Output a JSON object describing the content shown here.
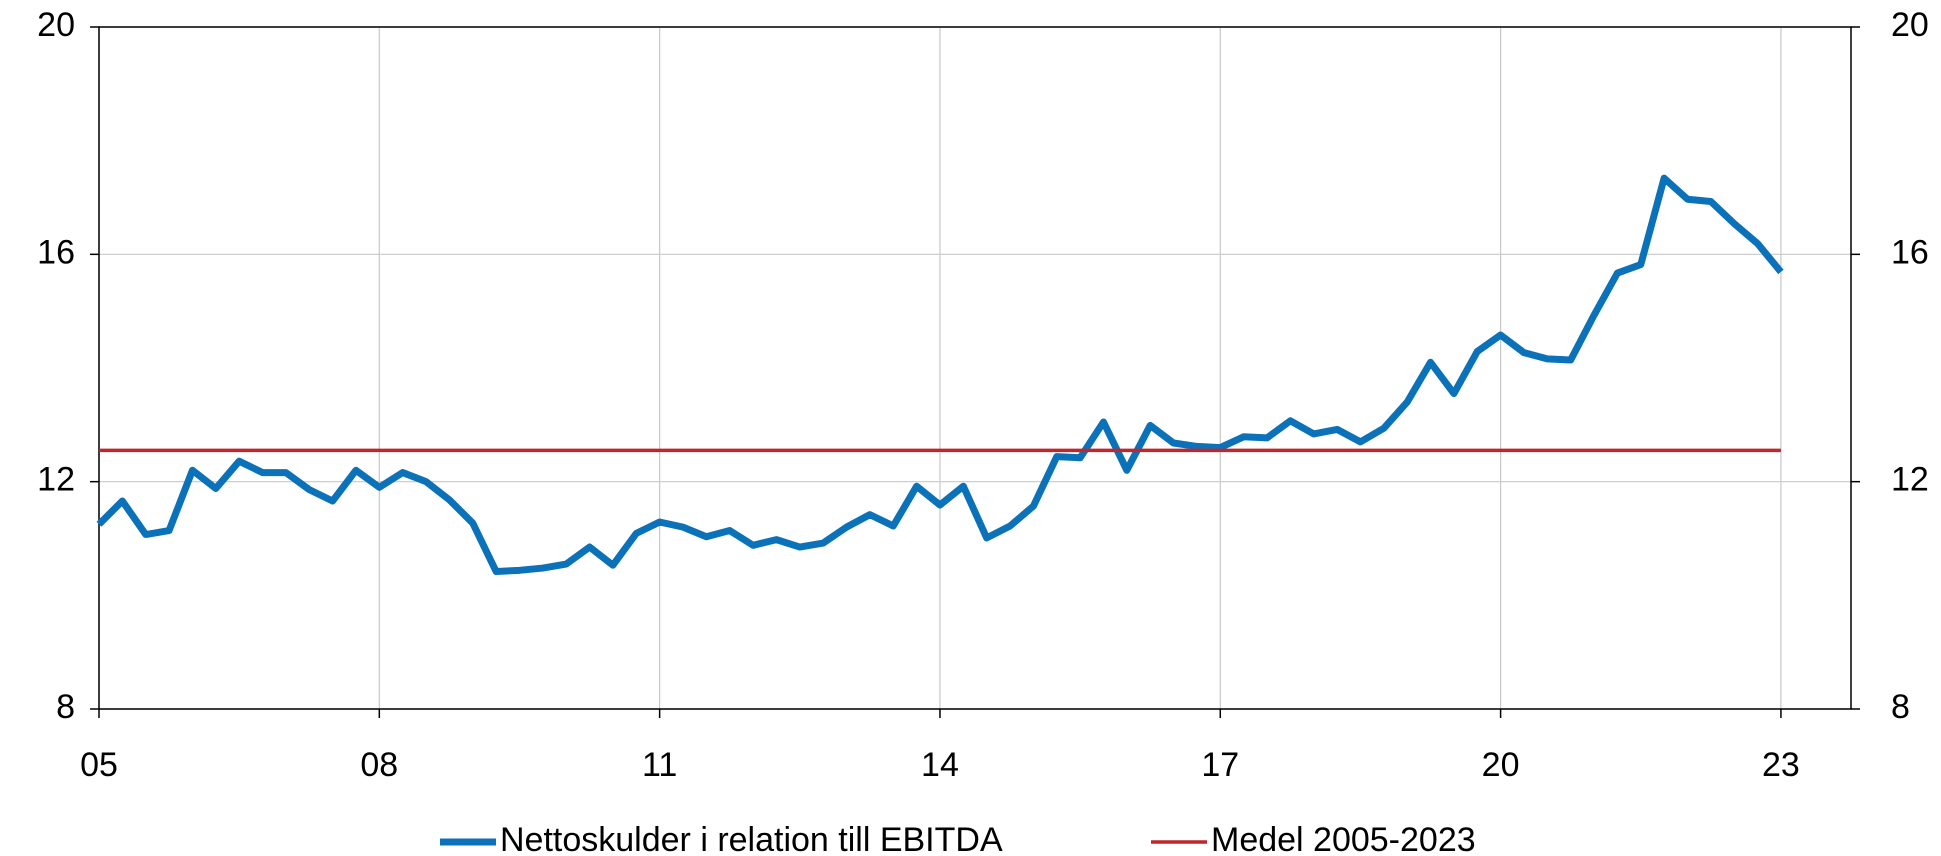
{
  "chart_data": {
    "type": "line",
    "xlim": [
      2005,
      2023.75
    ],
    "xticks": [
      {
        "value": 2005,
        "label": "05"
      },
      {
        "value": 2008,
        "label": "08"
      },
      {
        "value": 2011,
        "label": "11"
      },
      {
        "value": 2014,
        "label": "14"
      },
      {
        "value": 2017,
        "label": "17"
      },
      {
        "value": 2020,
        "label": "20"
      },
      {
        "value": 2023,
        "label": "23"
      }
    ],
    "ylim": [
      8,
      20
    ],
    "yticks": [
      8,
      12,
      16,
      20
    ],
    "y2lim": [
      8,
      20
    ],
    "y2ticks": [
      8,
      12,
      16,
      20
    ],
    "grid": true,
    "legend": "bottom",
    "series": [
      {
        "name": "Nettoskulder i relation till EBITDA",
        "color": "#0b72b9",
        "x": [
          2005,
          2005.25,
          2005.5,
          2005.75,
          2006,
          2006.25,
          2006.5,
          2006.75,
          2007,
          2007.25,
          2007.5,
          2007.75,
          2008,
          2008.25,
          2008.5,
          2008.75,
          2009,
          2009.25,
          2009.5,
          2009.75,
          2010,
          2010.25,
          2010.5,
          2010.75,
          2011,
          2011.25,
          2011.5,
          2011.75,
          2012,
          2012.25,
          2012.5,
          2012.75,
          2013,
          2013.25,
          2013.5,
          2013.75,
          2014,
          2014.25,
          2014.5,
          2014.75,
          2015,
          2015.25,
          2015.5,
          2015.75,
          2016,
          2016.25,
          2016.5,
          2016.75,
          2017,
          2017.25,
          2017.5,
          2017.75,
          2018,
          2018.25,
          2018.5,
          2018.75,
          2019,
          2019.25,
          2019.5,
          2019.75,
          2020,
          2020.25,
          2020.5,
          2020.75,
          2021,
          2021.25,
          2021.5,
          2021.75,
          2022,
          2022.25,
          2022.5,
          2022.75,
          2023
        ],
        "values": [
          11.25,
          11.66,
          11.07,
          11.14,
          12.2,
          11.88,
          12.36,
          12.16,
          12.16,
          11.86,
          11.66,
          12.2,
          11.9,
          12.16,
          12.0,
          11.68,
          11.27,
          10.42,
          10.44,
          10.48,
          10.55,
          10.85,
          10.53,
          11.09,
          11.29,
          11.2,
          11.03,
          11.14,
          10.88,
          10.98,
          10.85,
          10.92,
          11.2,
          11.42,
          11.22,
          11.92,
          11.59,
          11.92,
          11.01,
          11.22,
          11.57,
          12.44,
          12.42,
          13.05,
          12.2,
          12.99,
          12.68,
          12.62,
          12.6,
          12.79,
          12.77,
          13.07,
          12.84,
          12.92,
          12.7,
          12.94,
          13.4,
          14.1,
          13.55,
          14.29,
          14.58,
          14.27,
          14.16,
          14.14,
          14.93,
          15.67,
          15.82,
          17.34,
          16.97,
          16.93,
          16.54,
          16.19,
          15.69
        ]
      },
      {
        "name": "Medel 2005-2023",
        "color": "#c0272d",
        "x": [
          2005,
          2023
        ],
        "values": [
          12.55,
          12.55
        ]
      }
    ]
  }
}
